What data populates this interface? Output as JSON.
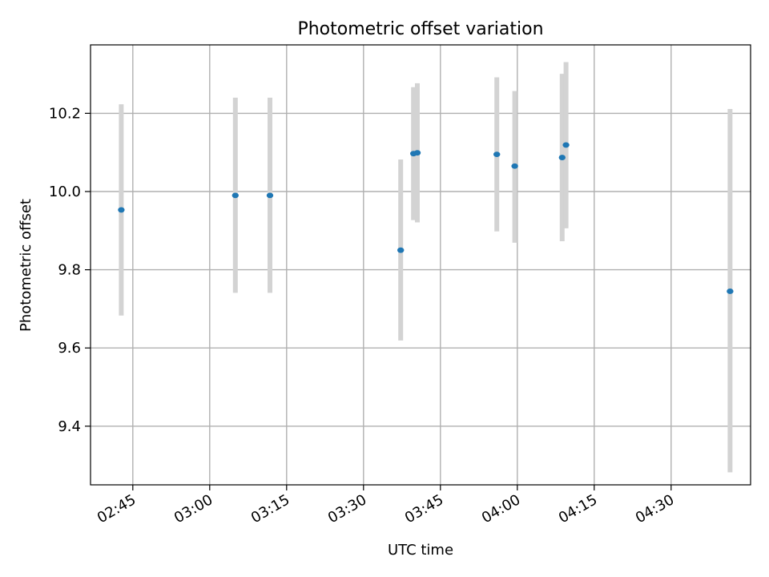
{
  "chart_data": {
    "type": "scatter",
    "title": "Photometric offset variation",
    "xlabel": "UTC time",
    "ylabel": "Photometric offset",
    "xlim": [
      "02:36:45",
      "04:45:30"
    ],
    "ylim": [
      9.25,
      10.375
    ],
    "x_ticks": [
      "02:45",
      "03:00",
      "03:15",
      "03:30",
      "03:45",
      "04:00",
      "04:15",
      "04:30"
    ],
    "y_ticks": [
      9.4,
      9.6,
      9.8,
      10.0,
      10.2
    ],
    "grid": true,
    "points": [
      {
        "x": "02:42:45",
        "y": 9.953,
        "ylow": 9.683,
        "yhigh": 10.223
      },
      {
        "x": "03:05:00",
        "y": 9.99,
        "ylow": 9.741,
        "yhigh": 10.24
      },
      {
        "x": "03:11:45",
        "y": 9.99,
        "ylow": 9.741,
        "yhigh": 10.24
      },
      {
        "x": "03:37:15",
        "y": 9.85,
        "ylow": 9.619,
        "yhigh": 10.082
      },
      {
        "x": "03:39:45",
        "y": 10.097,
        "ylow": 9.927,
        "yhigh": 10.267
      },
      {
        "x": "03:40:30",
        "y": 10.099,
        "ylow": 9.921,
        "yhigh": 10.277
      },
      {
        "x": "03:56:00",
        "y": 10.095,
        "ylow": 9.898,
        "yhigh": 10.292
      },
      {
        "x": "03:59:30",
        "y": 10.065,
        "ylow": 9.869,
        "yhigh": 10.257
      },
      {
        "x": "04:08:45",
        "y": 10.087,
        "ylow": 9.873,
        "yhigh": 10.301
      },
      {
        "x": "04:09:30",
        "y": 10.119,
        "ylow": 9.906,
        "yhigh": 10.331
      },
      {
        "x": "04:41:30",
        "y": 9.745,
        "ylow": 9.282,
        "yhigh": 10.211
      }
    ],
    "marker_color": "#1f77b4",
    "errorbar_color": "#d3d3d3",
    "grid_color": "#b0b0b0"
  }
}
